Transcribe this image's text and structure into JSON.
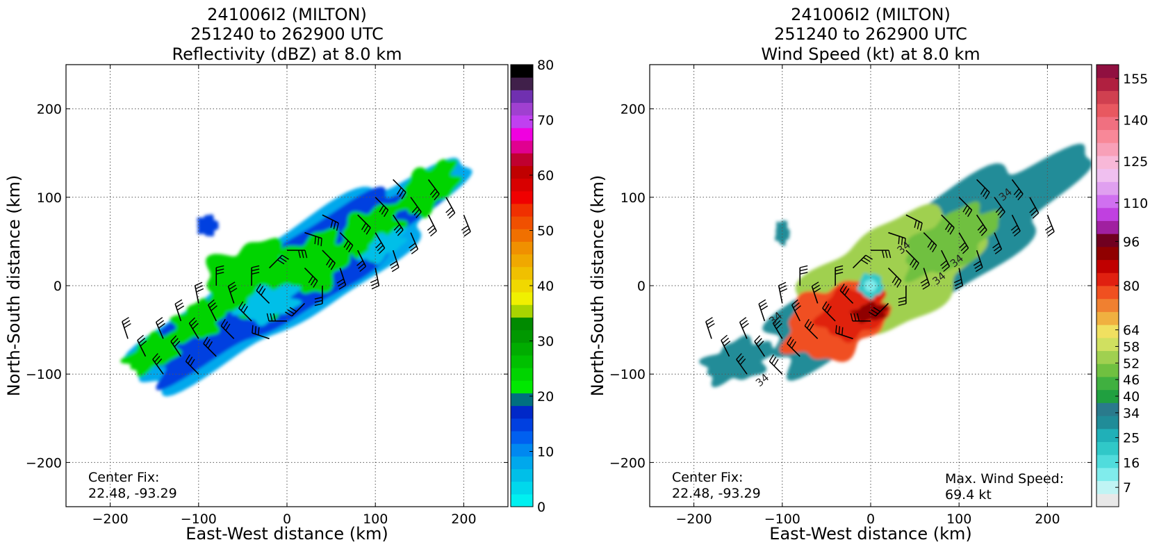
{
  "figure": {
    "panels": [
      {
        "id": "reflectivity",
        "title_lines": [
          "241006I2 (MILTON)",
          "251240 to 262900 UTC",
          "Reflectivity (dBZ) at 8.0 km"
        ],
        "xlabel": "East-West distance (km)",
        "ylabel": "North-South distance (km)",
        "center_fix_label": "Center Fix:",
        "center_fix_value": "22.48, -93.29",
        "max_wind_label": "",
        "max_wind_value": ""
      },
      {
        "id": "wind-speed",
        "title_lines": [
          "241006I2 (MILTON)",
          "251240 to 262900 UTC",
          "Wind Speed (kt) at 8.0 km"
        ],
        "xlabel": "East-West distance (km)",
        "ylabel": "North-South distance (km)",
        "center_fix_label": "Center Fix:",
        "center_fix_value": "22.48, -93.29",
        "max_wind_label": "Max. Wind Speed:",
        "max_wind_value": "69.4 kt"
      }
    ]
  },
  "chart_data": [
    {
      "type": "heatmap",
      "title": "241006I2 (MILTON) 251240 to 262900 UTC Reflectivity (dBZ) at 8.0 km",
      "xlabel": "East-West distance (km)",
      "ylabel": "North-South distance (km)",
      "xlim": [
        -250,
        250
      ],
      "ylim": [
        -250,
        250
      ],
      "xticks": [
        -200,
        -100,
        0,
        100,
        200
      ],
      "yticks": [
        -200,
        -100,
        0,
        100,
        200
      ],
      "grid": true,
      "colorbar": {
        "label_values": [
          0,
          10,
          20,
          30,
          40,
          50,
          60,
          70,
          80
        ],
        "range": [
          0,
          80
        ],
        "colors": [
          "#00f0f0",
          "#00d8ec",
          "#00bfe8",
          "#00a8ec",
          "#0088f0",
          "#0060f0",
          "#0040e0",
          "#0028c8",
          "#007080",
          "#00e800",
          "#00d400",
          "#00c000",
          "#00ac00",
          "#009800",
          "#008a00",
          "#a8d400",
          "#f0f000",
          "#f0d800",
          "#f0c000",
          "#f0a800",
          "#f09000",
          "#f07000",
          "#f05000",
          "#f03000",
          "#f00000",
          "#d80000",
          "#c00000",
          "#c00030",
          "#e00090",
          "#f000e0",
          "#c040f0",
          "#a040d0",
          "#7030b0",
          "#40204a",
          "#000000"
        ]
      },
      "annotations": [
        "Center Fix:",
        "22.48, -93.29"
      ],
      "features": {
        "echo_band_axis_angle_deg": 33,
        "echo_band_center_km": [
          10,
          10
        ],
        "echo_band_length_km": 440,
        "echo_band_width_km": 95,
        "wind_barbs": true
      }
    },
    {
      "type": "heatmap",
      "title": "241006I2 (MILTON) 251240 to 262900 UTC Wind Speed (kt) at 8.0 km",
      "xlabel": "East-West distance (km)",
      "ylabel": "North-South distance (km)",
      "xlim": [
        -250,
        250
      ],
      "ylim": [
        -250,
        250
      ],
      "xticks": [
        -200,
        -100,
        0,
        100,
        200
      ],
      "yticks": [
        -200,
        -100,
        0,
        100,
        200
      ],
      "grid": true,
      "colorbar": {
        "label_values": [
          7,
          16,
          25,
          34,
          40,
          46,
          52,
          58,
          64,
          80,
          96,
          110,
          125,
          140,
          155
        ],
        "range": [
          0,
          160
        ],
        "colors": [
          "#e8e8e8",
          "#c0f4f4",
          "#80ecec",
          "#50dcdc",
          "#30c8c8",
          "#20b0b8",
          "#208c98",
          "#2a7a8c",
          "#20a040",
          "#40b040",
          "#70c040",
          "#a0d050",
          "#d0e060",
          "#f0e060",
          "#f0b040",
          "#f08030",
          "#f05020",
          "#e02010",
          "#c00000",
          "#900000",
          "#700020",
          "#a020a0",
          "#c040e0",
          "#d070f0",
          "#e0a0f0",
          "#f0c0f0",
          "#f8b8d8",
          "#f8a0b8",
          "#f88898",
          "#f07080",
          "#e85860",
          "#d04050",
          "#b02040",
          "#901040"
        ]
      },
      "annotations": [
        "Center Fix:",
        "22.48, -93.29",
        "Max. Wind Speed:",
        "69.4 kt"
      ],
      "contour_labels": [
        "34",
        "34",
        "34",
        "34",
        "34",
        "34"
      ],
      "max_wind_speed_kt": 69.4,
      "features": {
        "eye_center_km": [
          0,
          0
        ],
        "max_wind_region_km": [
          0,
          -30
        ],
        "wind_barbs": true
      }
    }
  ]
}
